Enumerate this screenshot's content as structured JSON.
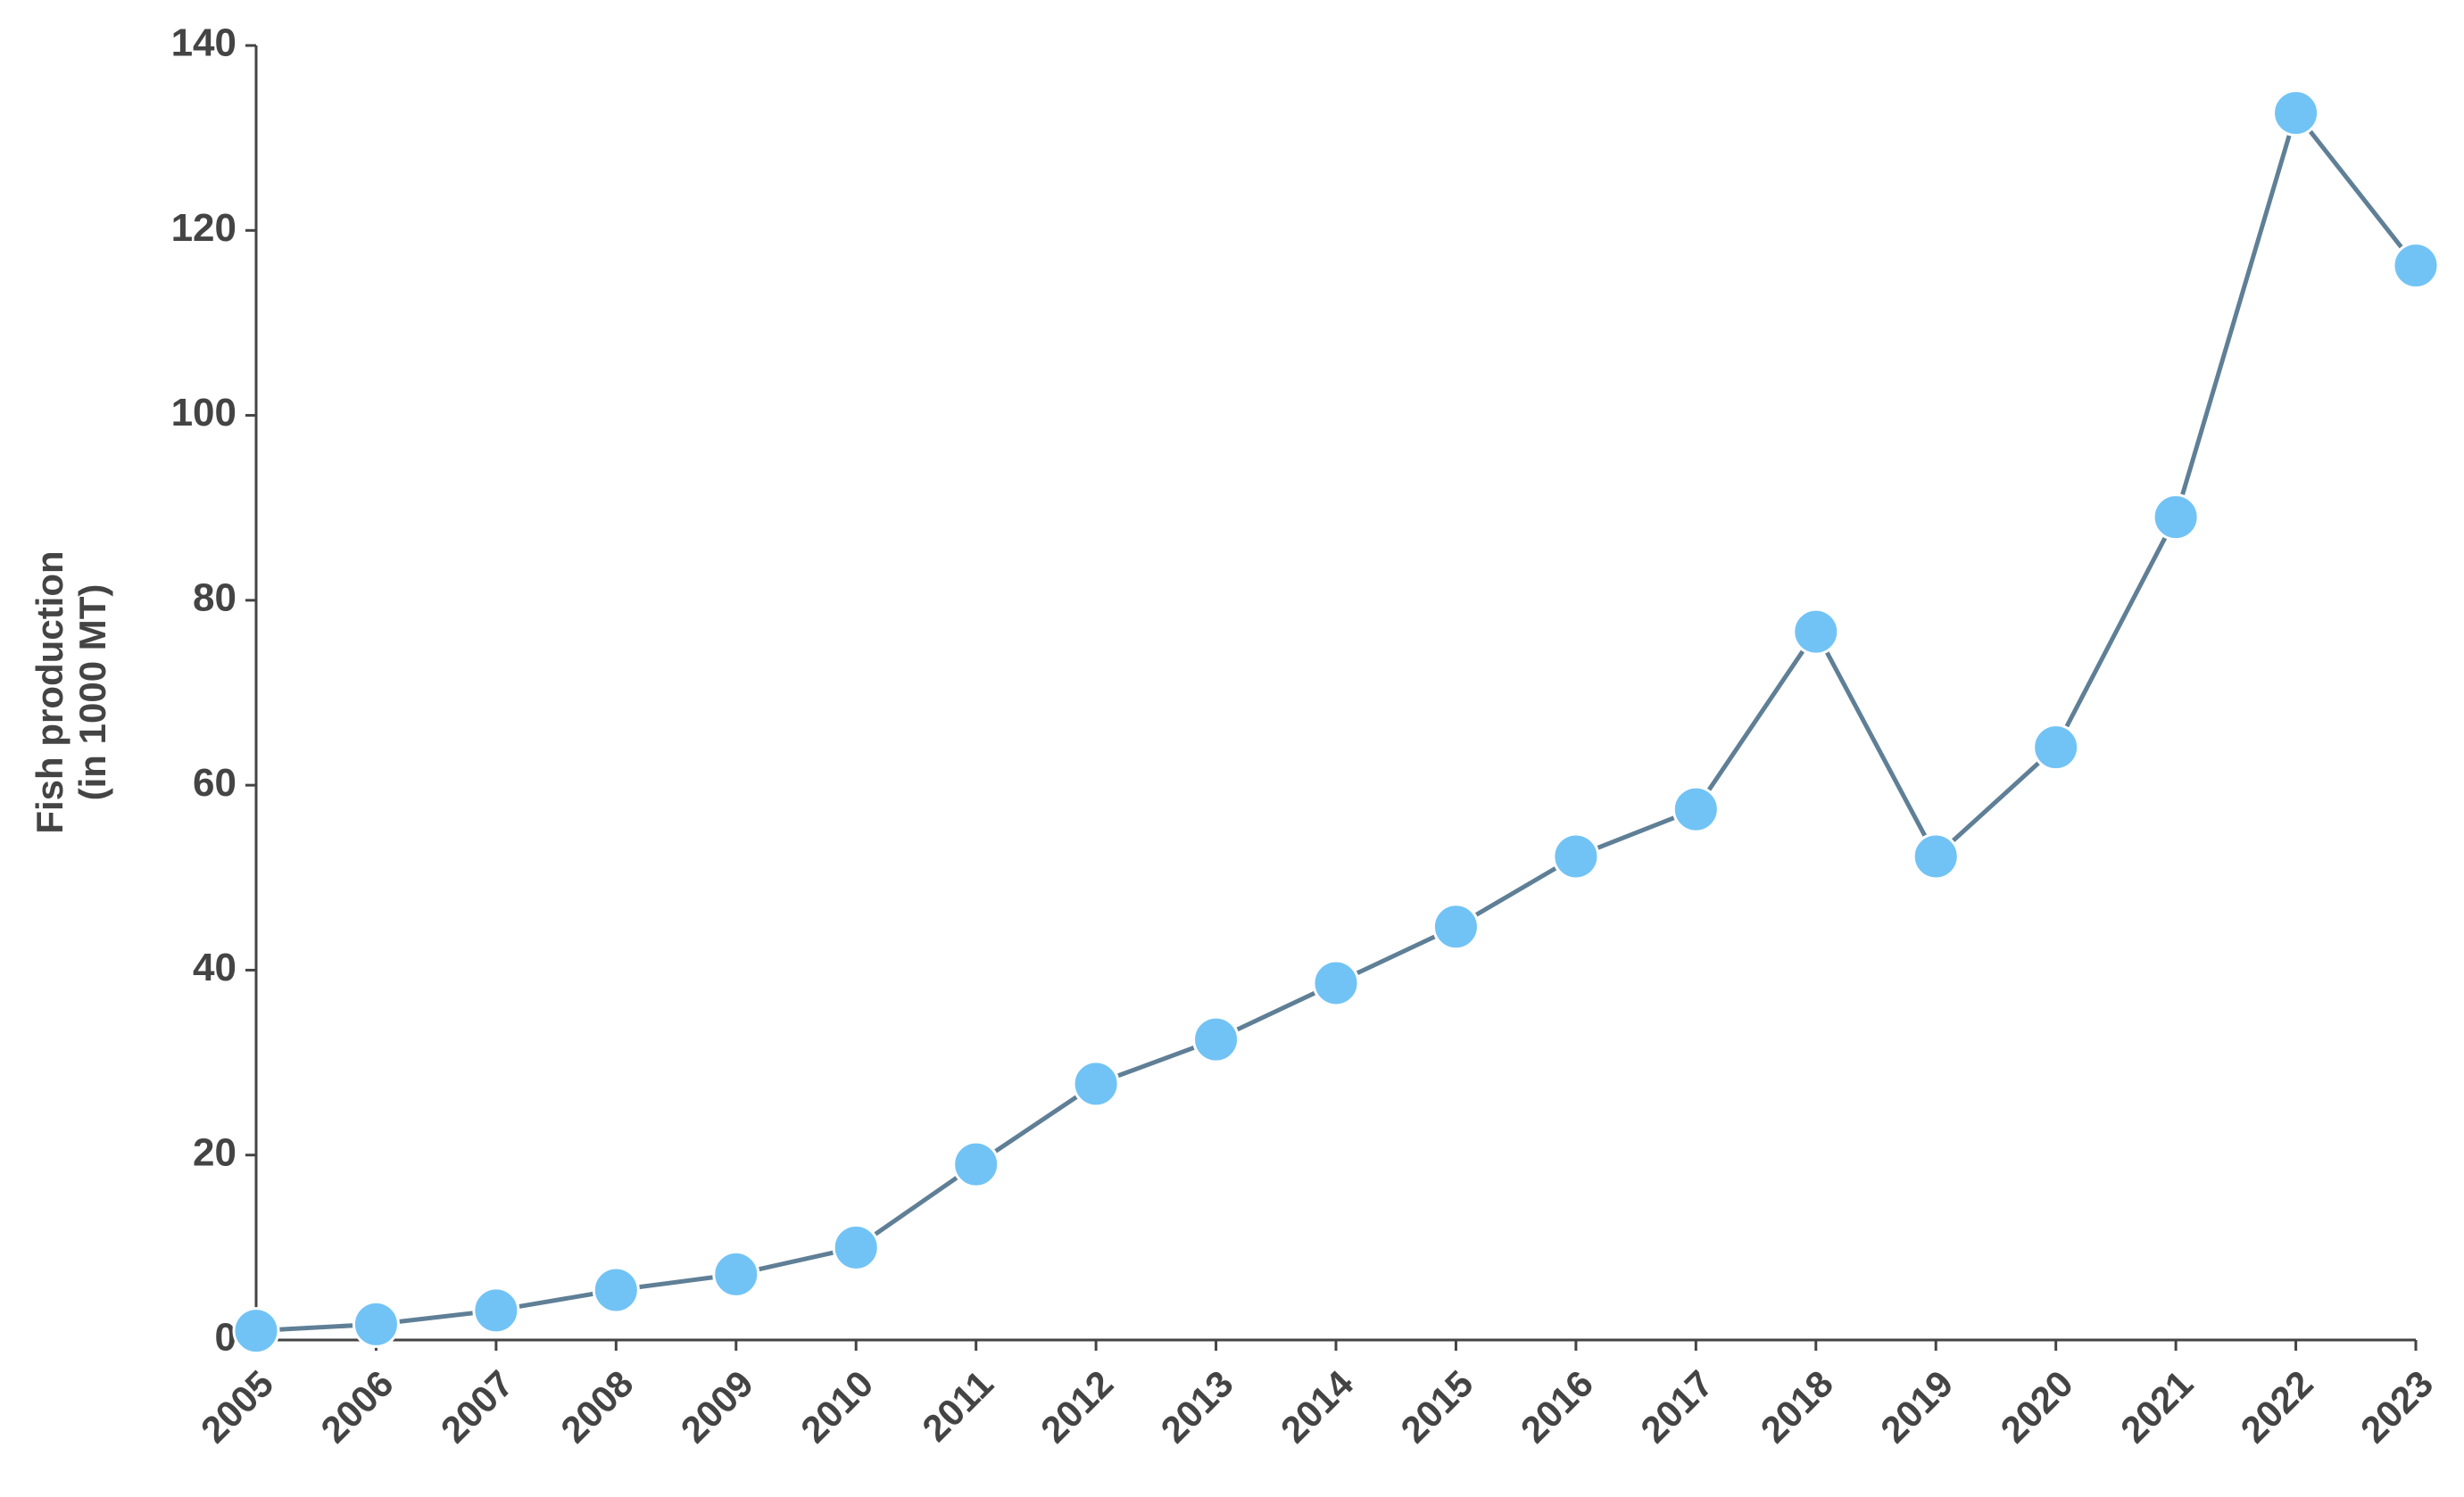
{
  "chart_data": {
    "type": "line",
    "ylabel": [
      "Fish production",
      "(in 1000 MT)"
    ],
    "categories": [
      "2005",
      "2006",
      "2007",
      "2008",
      "2009",
      "2010",
      "2011",
      "2012",
      "2013",
      "2014",
      "2015",
      "2016",
      "2017",
      "2018",
      "2019",
      "2020",
      "2021",
      "2022",
      "2023"
    ],
    "series": [
      {
        "line_color": "#5f7f96",
        "color": "#72c3f5",
        "values": [
          1.0,
          1.7,
          3.2,
          5.4,
          7.1,
          10.0,
          19.0,
          27.7,
          32.5,
          38.6,
          44.7,
          52.3,
          57.4,
          76.6,
          52.3,
          64.1,
          89.0,
          132.7,
          116.2
        ]
      }
    ],
    "ylim": [
      0,
      140
    ],
    "yticks": [
      0,
      20,
      40,
      60,
      80,
      100,
      120,
      140
    ],
    "grid": false
  }
}
